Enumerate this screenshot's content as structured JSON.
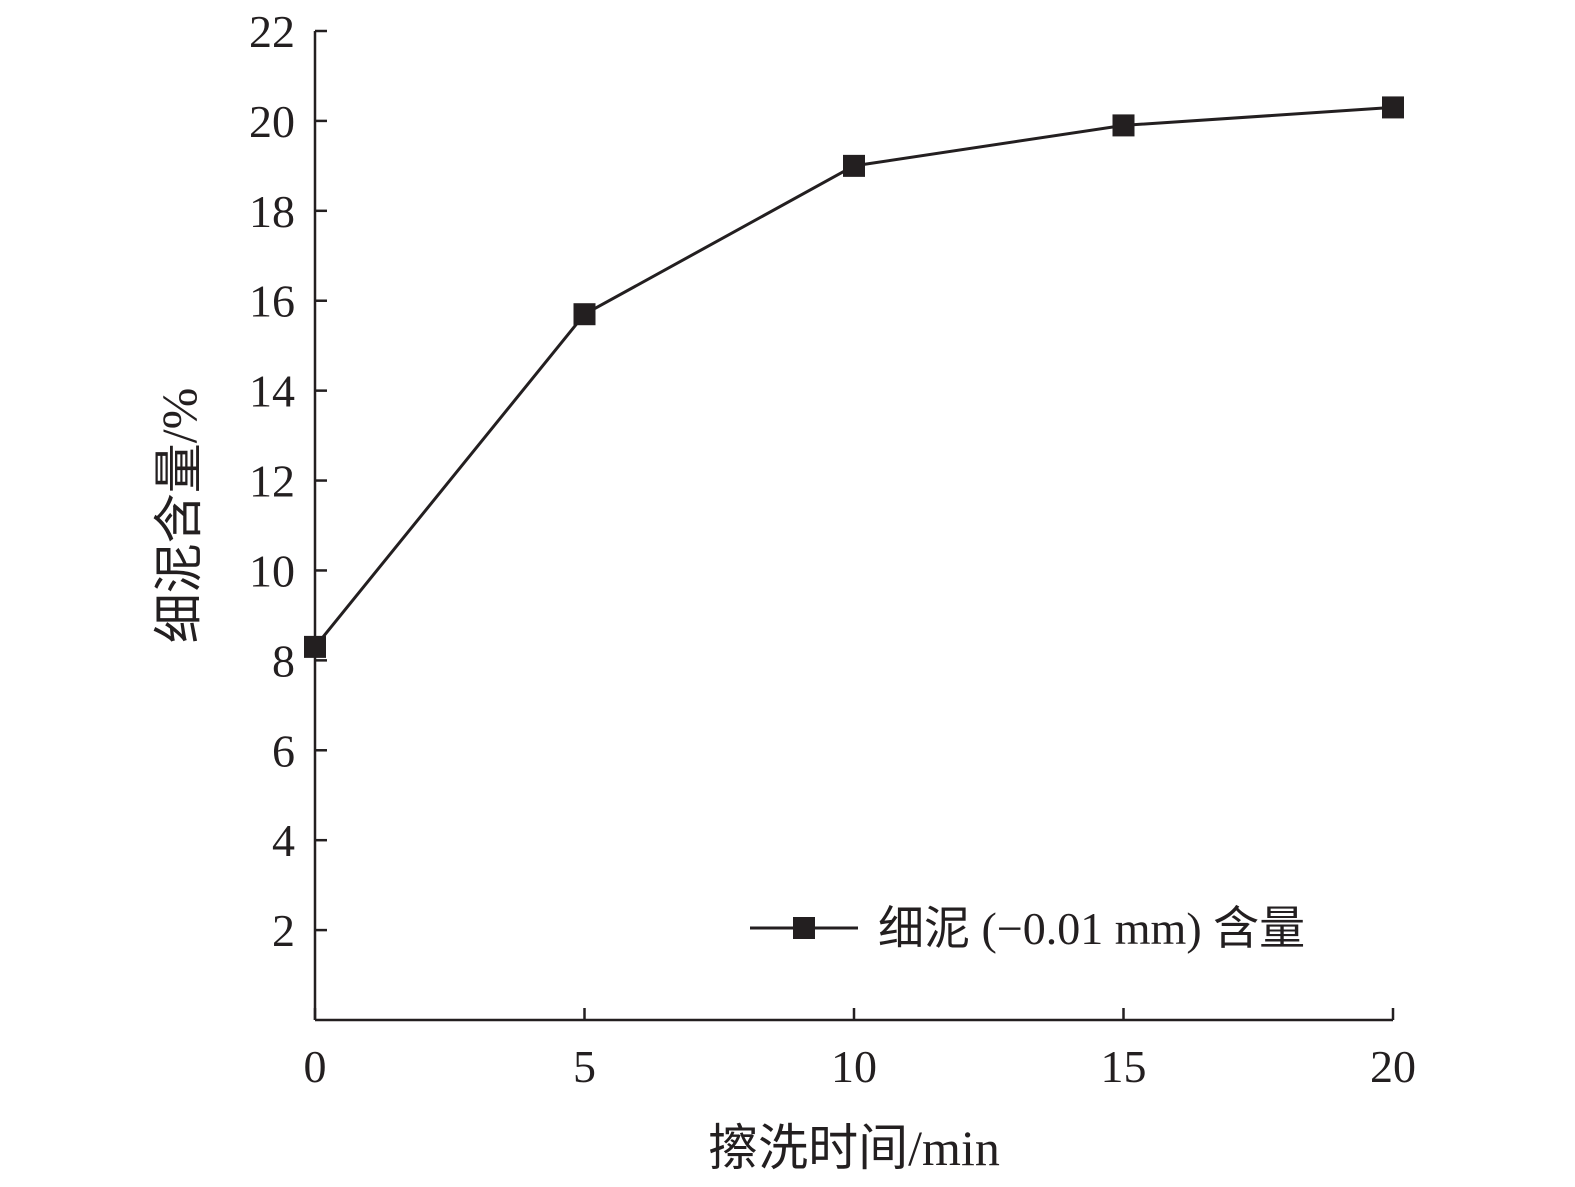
{
  "chart_data": {
    "type": "line",
    "title": "",
    "xlabel": "擦洗时间/min",
    "ylabel": "细泥含量/%",
    "x": [
      0,
      5,
      10,
      15,
      20
    ],
    "series": [
      {
        "name": "细泥 (−0.01 mm) 含量",
        "values": [
          8.3,
          15.7,
          19.0,
          19.9,
          20.3
        ]
      }
    ],
    "xlim": [
      0,
      20
    ],
    "ylim": [
      0,
      22
    ],
    "xticks": [
      0,
      5,
      10,
      15,
      20
    ],
    "yticks": [
      2,
      4,
      6,
      8,
      10,
      12,
      14,
      16,
      18,
      20,
      22
    ],
    "grid": false,
    "legend_position": "bottom-right",
    "colors": {
      "axis": "#231f20",
      "series": "#231f20"
    }
  }
}
